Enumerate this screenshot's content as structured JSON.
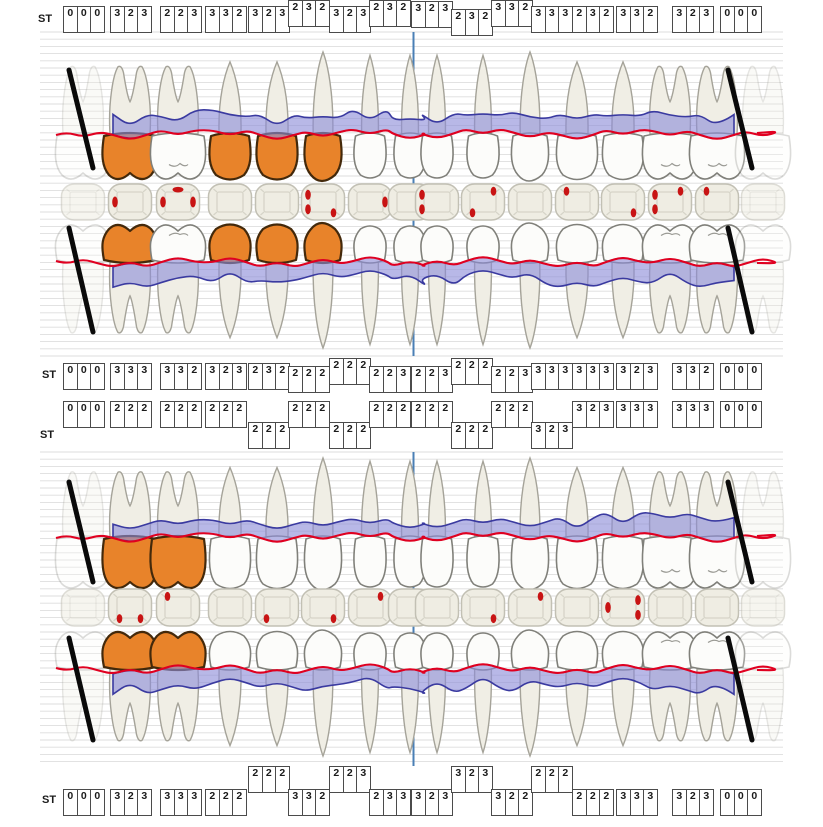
{
  "labels": {
    "st": "ST"
  },
  "colors": {
    "orange_crown": "#E8832A",
    "orange_stroke": "#43290B",
    "band_fill": "#8C8CD9",
    "band_stroke": "#3A3AA0",
    "red_line": "#E00020",
    "furcation_dot": "#C81414",
    "divider": "#4A7FB5",
    "missing_mark": "#0A0A0A",
    "gridline": "#DEDEDE"
  },
  "st_rows": [
    {
      "name": "upper-buccal",
      "groups": [
        "000",
        "323",
        "223",
        "332",
        "323",
        "232",
        "323",
        "232",
        "323",
        "232",
        "332",
        "333",
        "232",
        "332",
        "323",
        "000"
      ],
      "offsets": [
        0,
        0,
        0,
        0,
        0,
        -6,
        0,
        -6,
        -5,
        3,
        -6,
        0,
        0,
        0,
        0,
        0
      ]
    },
    {
      "name": "upper-palatal",
      "groups": [
        "000",
        "333",
        "332",
        "323",
        "232",
        "222",
        "222",
        "223",
        "223",
        "222",
        "223",
        "333",
        "333",
        "323",
        "332",
        "000"
      ],
      "offsets": [
        0,
        0,
        0,
        0,
        0,
        3,
        -5,
        3,
        3,
        -5,
        3,
        0,
        0,
        0,
        0,
        0
      ]
    },
    {
      "name": "lower-lingual",
      "groups": [
        "000",
        "222",
        "222",
        "222",
        "222",
        "222",
        "222",
        "222",
        "222",
        "222",
        "222",
        "323",
        "323",
        "333",
        "333",
        "000"
      ],
      "offsets": [
        0,
        0,
        0,
        0,
        21,
        0,
        21,
        0,
        0,
        21,
        0,
        21,
        0,
        0,
        0,
        0
      ]
    },
    {
      "name": "lower-buccal",
      "groups": [
        "000",
        "323",
        "333",
        "222",
        "222",
        "332",
        "223",
        "233",
        "323",
        "323",
        "322",
        "222",
        "222",
        "333",
        "323",
        "000"
      ],
      "offsets": [
        0,
        0,
        0,
        0,
        -23,
        0,
        -23,
        0,
        0,
        -23,
        0,
        -23,
        0,
        0,
        0,
        0
      ]
    }
  ],
  "arches": [
    {
      "name": "upper-buccal",
      "orange": [
        1,
        3,
        4,
        5
      ],
      "missing": [
        0,
        15
      ]
    },
    {
      "name": "upper-palatal",
      "orange": [
        1,
        3,
        4,
        5
      ],
      "missing": [
        0,
        15
      ]
    },
    {
      "name": "lower-lingual",
      "orange": [
        1,
        2
      ],
      "missing": [
        0,
        15
      ]
    },
    {
      "name": "lower-buccal",
      "orange": [
        1,
        2
      ],
      "missing": [
        0,
        15
      ]
    }
  ],
  "occlusal_rows": [
    {
      "name": "upper",
      "marks": [
        [],
        [
          "L"
        ],
        [
          "L",
          "TC",
          "R"
        ],
        [],
        [],
        [
          "L2",
          "BR"
        ],
        [
          "R"
        ],
        [],
        [
          "L2"
        ],
        [
          "BL",
          "TR"
        ],
        [],
        [
          "TL"
        ],
        [
          "BR"
        ],
        [
          "L2",
          "TR"
        ],
        [
          "TL"
        ],
        []
      ]
    },
    {
      "name": "lower",
      "marks": [
        [],
        [
          "BL",
          "BR"
        ],
        [
          "TL"
        ],
        [],
        [
          "BL"
        ],
        [
          "BR"
        ],
        [
          "TR"
        ],
        [],
        [],
        [
          "BR"
        ],
        [
          "TR"
        ],
        [],
        [
          "L",
          "R2"
        ],
        [],
        [],
        []
      ]
    }
  ]
}
